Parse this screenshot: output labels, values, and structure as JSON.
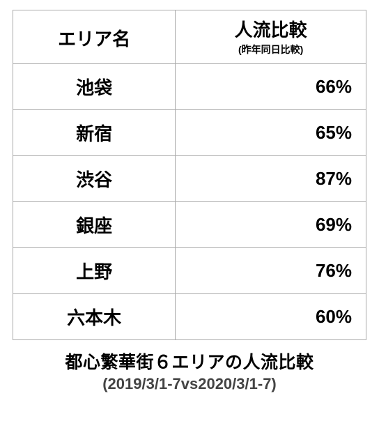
{
  "table": {
    "type": "table",
    "header": {
      "area": "エリア名",
      "value_main": "人流比較",
      "value_sub": "(昨年同日比較)"
    },
    "columns": [
      "area",
      "value"
    ],
    "col_widths_pct": [
      46,
      54
    ],
    "col_align": [
      "center",
      "right"
    ],
    "rows": [
      {
        "area": "池袋",
        "value": "66%"
      },
      {
        "area": "新宿",
        "value": "65%"
      },
      {
        "area": "渋谷",
        "value": "87%"
      },
      {
        "area": "銀座",
        "value": "69%"
      },
      {
        "area": "上野",
        "value": "76%"
      },
      {
        "area": "六本木",
        "value": "60%"
      }
    ],
    "border_color": "#aaaaaa",
    "background_color": "#ffffff",
    "header_fontsize": 26,
    "header_sub_fontsize": 14,
    "cell_fontsize": 26,
    "font_weight": 700,
    "text_color": "#000000"
  },
  "caption": {
    "main": "都心繁華街６エリアの人流比較",
    "sub": "(2019/3/1-7vs2020/3/1-7)",
    "main_fontsize": 25,
    "sub_fontsize": 22,
    "main_color": "#000000",
    "sub_color": "#444444"
  }
}
